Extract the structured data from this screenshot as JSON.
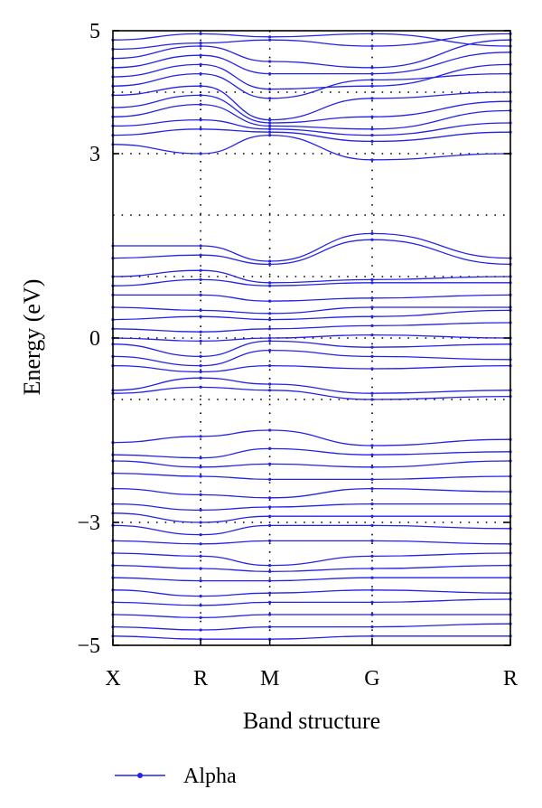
{
  "chart_data": {
    "type": "line",
    "title": "",
    "xlabel": "Band structure",
    "ylabel": "Energy (eV)",
    "ylim": [
      -5,
      5
    ],
    "yticks": [
      "5",
      "3",
      "0",
      "−3",
      "−5"
    ],
    "ytick_values": [
      5,
      3,
      0,
      -3,
      -5
    ],
    "kpoints": [
      "X",
      "R",
      "M",
      "G",
      "R"
    ],
    "kpoint_positions": [
      0,
      0.66,
      1.18,
      1.95,
      2.99
    ],
    "grid": "dotted",
    "grid_y": [
      4,
      3,
      2,
      1,
      0,
      -1,
      -3
    ],
    "legend": {
      "label": "Alpha",
      "placement": "bottom-left"
    },
    "line_color": "#2323e6",
    "series_name": "Alpha",
    "bands": [
      [
        4.85,
        4.95,
        4.9,
        4.95,
        4.75
      ],
      [
        4.7,
        4.8,
        4.85,
        4.75,
        4.95
      ],
      [
        4.55,
        4.75,
        4.5,
        4.4,
        4.85
      ],
      [
        4.4,
        4.6,
        4.3,
        4.3,
        4.65
      ],
      [
        4.25,
        4.45,
        4.05,
        4.1,
        4.45
      ],
      [
        4.1,
        4.3,
        3.9,
        4.2,
        4.3
      ],
      [
        3.95,
        4.1,
        3.55,
        3.9,
        4.0
      ],
      [
        3.75,
        3.95,
        3.5,
        3.6,
        3.85
      ],
      [
        3.6,
        3.8,
        3.45,
        3.4,
        3.7
      ],
      [
        3.45,
        3.55,
        3.4,
        3.3,
        3.5
      ],
      [
        3.3,
        3.4,
        3.35,
        3.2,
        3.35
      ],
      [
        3.15,
        3.0,
        3.3,
        2.9,
        3.0
      ],
      [
        1.5,
        1.5,
        1.25,
        1.7,
        1.3
      ],
      [
        1.3,
        1.35,
        1.2,
        1.6,
        1.2
      ],
      [
        1.0,
        1.1,
        0.9,
        0.95,
        1.0
      ],
      [
        0.85,
        0.95,
        0.85,
        0.9,
        0.9
      ],
      [
        0.7,
        0.7,
        0.6,
        0.65,
        0.7
      ],
      [
        0.5,
        0.45,
        0.4,
        0.5,
        0.5
      ],
      [
        0.3,
        0.35,
        0.3,
        0.35,
        0.45
      ],
      [
        0.15,
        0.1,
        0.15,
        0.2,
        0.25
      ],
      [
        0.0,
        -0.05,
        0.0,
        0.05,
        0.0
      ],
      [
        -0.1,
        -0.3,
        -0.05,
        -0.15,
        -0.1
      ],
      [
        -0.3,
        -0.45,
        -0.2,
        -0.3,
        -0.35
      ],
      [
        -0.45,
        -0.55,
        -0.45,
        -0.5,
        -0.45
      ],
      [
        -0.85,
        -0.65,
        -0.75,
        -0.9,
        -0.85
      ],
      [
        -0.9,
        -0.8,
        -0.85,
        -1.0,
        -0.95
      ],
      [
        -1.7,
        -1.6,
        -1.5,
        -1.75,
        -1.65
      ],
      [
        -1.9,
        -1.95,
        -1.8,
        -1.9,
        -1.85
      ],
      [
        -2.0,
        -2.1,
        -2.05,
        -2.1,
        -2.0
      ],
      [
        -2.2,
        -2.25,
        -2.3,
        -2.3,
        -2.25
      ],
      [
        -2.45,
        -2.55,
        -2.6,
        -2.45,
        -2.5
      ],
      [
        -2.7,
        -2.8,
        -2.75,
        -2.7,
        -2.7
      ],
      [
        -2.85,
        -3.0,
        -2.9,
        -2.9,
        -2.9
      ],
      [
        -3.05,
        -3.2,
        -3.05,
        -3.05,
        -3.1
      ],
      [
        -3.3,
        -3.35,
        -3.3,
        -3.3,
        -3.35
      ],
      [
        -3.5,
        -3.55,
        -3.7,
        -3.55,
        -3.5
      ],
      [
        -3.7,
        -3.75,
        -3.8,
        -3.75,
        -3.7
      ],
      [
        -3.9,
        -3.95,
        -3.95,
        -3.9,
        -3.9
      ],
      [
        -4.1,
        -4.2,
        -4.15,
        -4.1,
        -4.15
      ],
      [
        -4.3,
        -4.35,
        -4.3,
        -4.3,
        -4.25
      ],
      [
        -4.5,
        -4.55,
        -4.5,
        -4.5,
        -4.5
      ],
      [
        -4.7,
        -4.75,
        -4.7,
        -4.7,
        -4.65
      ],
      [
        -4.85,
        -4.9,
        -4.9,
        -4.85,
        -4.85
      ]
    ]
  }
}
